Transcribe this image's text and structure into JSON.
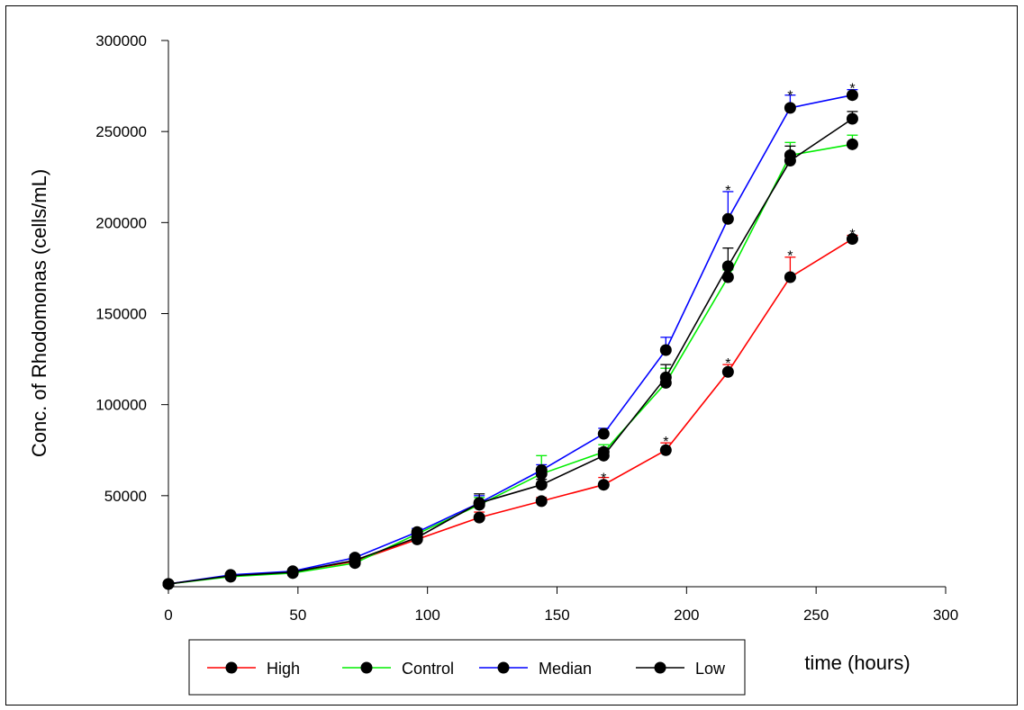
{
  "chart_data": {
    "type": "line",
    "title": "",
    "xlabel": "time (hours)",
    "ylabel": "Conc. of Rhodomonas (cells/mL)",
    "xlim": [
      0,
      300
    ],
    "ylim": [
      0,
      300000
    ],
    "x_ticks": [
      0,
      50,
      100,
      150,
      200,
      250,
      300
    ],
    "y_ticks": [
      50000,
      100000,
      150000,
      200000,
      250000,
      300000
    ],
    "x_tick_labels": [
      "0",
      "50",
      "100",
      "150",
      "200",
      "250",
      "300"
    ],
    "y_tick_labels": [
      "50000",
      "100000",
      "150000",
      "200000",
      "250000",
      "300000"
    ],
    "grid": false,
    "legend_position": "bottom-left",
    "x": [
      0,
      24,
      48,
      72,
      96,
      120,
      144,
      168,
      192,
      216,
      240,
      264
    ],
    "series": [
      {
        "name": "High",
        "color": "#ff0000",
        "values": [
          1500,
          6000,
          8000,
          14000,
          26000,
          38000,
          47000,
          56000,
          75000,
          118000,
          170000,
          191000
        ],
        "errors": [
          500,
          800,
          1000,
          1500,
          2000,
          3000,
          2000,
          4000,
          4000,
          4000,
          11000,
          2000
        ],
        "significant": [
          false,
          false,
          false,
          false,
          false,
          false,
          false,
          true,
          true,
          true,
          true,
          true
        ]
      },
      {
        "name": "Control",
        "color": "#00ee00",
        "values": [
          1500,
          5500,
          7500,
          13000,
          29000,
          45000,
          62000,
          74000,
          112000,
          170000,
          237000,
          243000
        ],
        "errors": [
          500,
          800,
          1000,
          1500,
          2000,
          4000,
          10000,
          4000,
          8000,
          4000,
          7000,
          5000
        ],
        "significant": [
          false,
          false,
          false,
          false,
          false,
          false,
          false,
          false,
          false,
          false,
          false,
          false
        ]
      },
      {
        "name": "Median",
        "color": "#0000ff",
        "values": [
          1500,
          6500,
          8500,
          16000,
          30000,
          46000,
          64000,
          84000,
          130000,
          202000,
          263000,
          270000
        ],
        "errors": [
          500,
          800,
          1000,
          1500,
          2000,
          4000,
          3000,
          3000,
          7000,
          15000,
          7000,
          3000
        ],
        "significant": [
          false,
          false,
          false,
          false,
          false,
          false,
          false,
          false,
          false,
          true,
          true,
          true
        ]
      },
      {
        "name": "Low",
        "color": "#000000",
        "values": [
          1500,
          6000,
          8000,
          14500,
          27000,
          46000,
          56000,
          72000,
          115000,
          176000,
          234000,
          257000
        ],
        "errors": [
          500,
          800,
          1000,
          1500,
          2000,
          5000,
          3000,
          4000,
          7000,
          10000,
          8000,
          4000
        ],
        "significant": [
          false,
          false,
          false,
          false,
          false,
          false,
          false,
          false,
          false,
          false,
          false,
          false
        ]
      }
    ],
    "annotations": [
      {
        "text": "*",
        "x": 168,
        "y": 62000
      },
      {
        "text": "*",
        "x": 192,
        "y": 82000
      },
      {
        "text": "*",
        "x": 216,
        "y": 125000
      },
      {
        "text": "*",
        "x": 240,
        "y": 184000
      },
      {
        "text": "*",
        "x": 264,
        "y": 196000
      },
      {
        "text": "*",
        "x": 216,
        "y": 220000
      },
      {
        "text": "*",
        "x": 240,
        "y": 272000
      },
      {
        "text": "*",
        "x": 264,
        "y": 276000
      }
    ]
  }
}
